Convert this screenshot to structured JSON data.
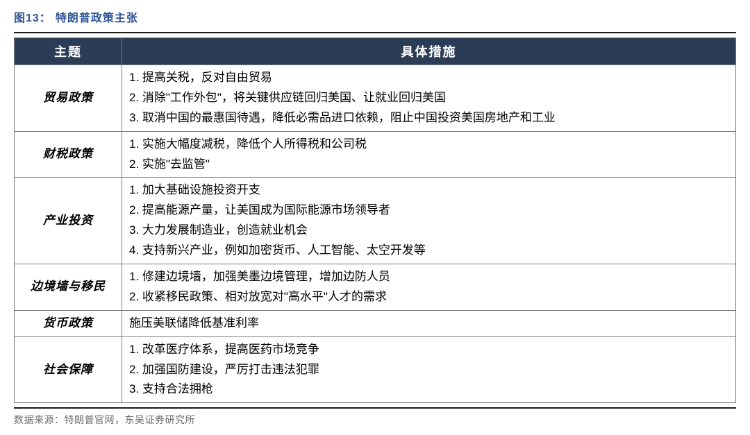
{
  "title_prefix": "图13：",
  "title_text": "特朗普政策主张",
  "columns": [
    "主题",
    "具体措施"
  ],
  "rows": [
    {
      "topic": "贸易政策",
      "measures": [
        "1. 提高关税，反对自由贸易",
        "2. 消除\"工作外包\"，将关键供应链回归美国、让就业回归美国",
        "3. 取消中国的最惠国待遇，降低必需品进口依赖，阻止中国投资美国房地产和工业"
      ]
    },
    {
      "topic": "财税政策",
      "measures": [
        "1. 实施大幅度减税，降低个人所得税和公司税",
        "2. 实施\"去监管\""
      ]
    },
    {
      "topic": "产业投资",
      "measures": [
        "1. 加大基础设施投资开支",
        "2. 提高能源产量，让美国成为国际能源市场领导者",
        "3. 大力发展制造业，创造就业机会",
        "4. 支持新兴产业，例如加密货币、人工智能、太空开发等"
      ]
    },
    {
      "topic": "边境墙与移民",
      "measures": [
        "1. 修建边境墙，加强美墨边境管理，增加边防人员",
        "2. 收紧移民政策、相对放宽对\"高水平\"人才的需求"
      ]
    },
    {
      "topic": "货币政策",
      "measures": [
        "施压美联储降低基准利率"
      ]
    },
    {
      "topic": "社会保障",
      "measures": [
        "1. 改革医疗体系，提高医药市场竞争",
        "2. 加强国防建设，严厉打击违法犯罪",
        "3. 支持合法拥枪"
      ]
    }
  ],
  "source_label": "数据来源：特朗普官网，东吴证券研究所",
  "colors": {
    "title": "#2f5496",
    "header_bg": "#2b3d56",
    "header_fg": "#ffffff",
    "border": "#7a7a7a",
    "rule": "#1a1a1a",
    "source": "#6b6b6b",
    "body_text": "#000000",
    "page_bg": "#ffffff"
  }
}
